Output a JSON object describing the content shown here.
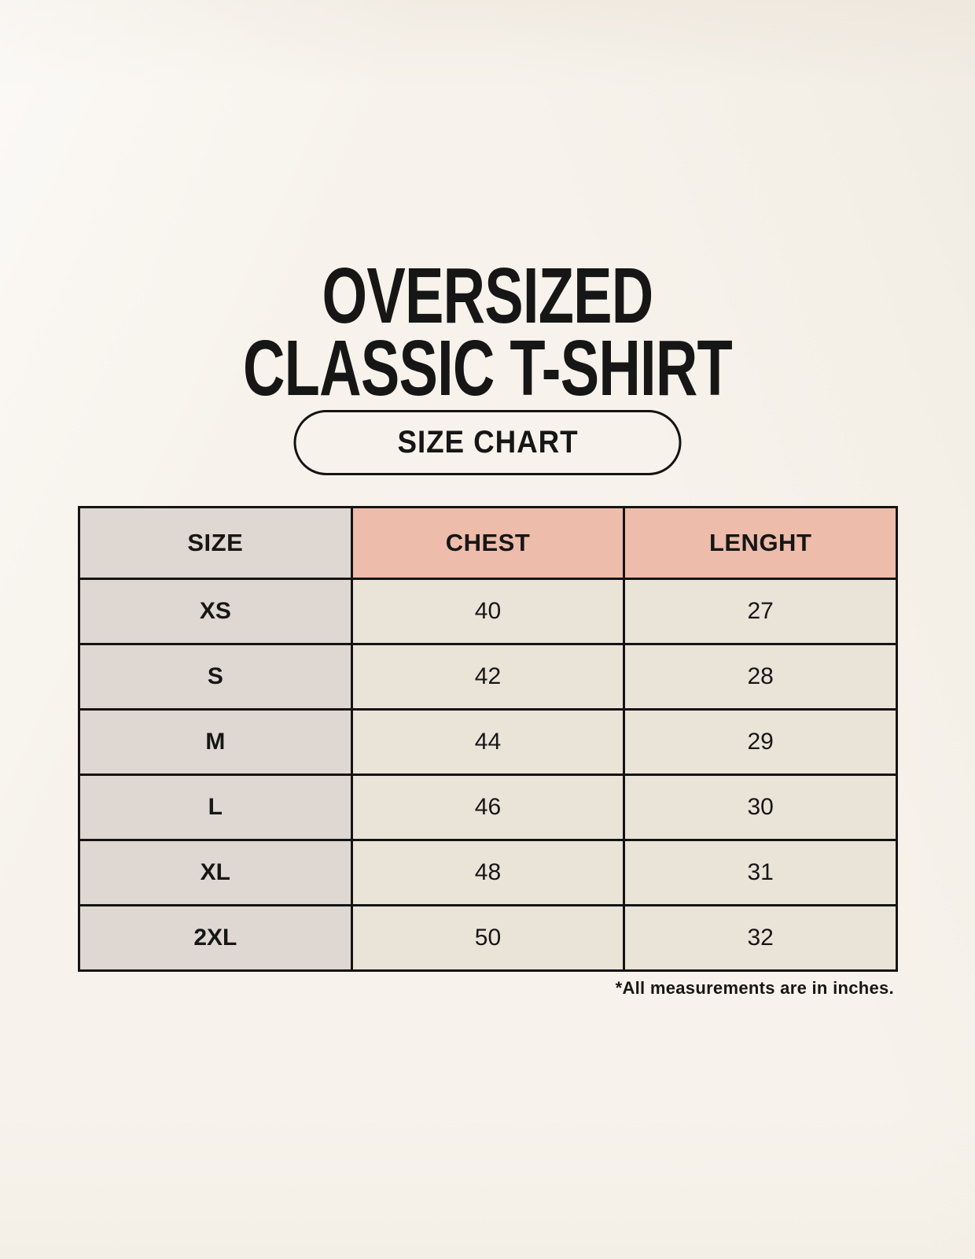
{
  "title": {
    "line1": "OVERSIZED",
    "line2": "CLASSIC T-SHIRT"
  },
  "size_chart_button": {
    "label": "SIZE CHART"
  },
  "table": {
    "columns": [
      "SIZE",
      "CHEST",
      "LENGHT"
    ],
    "rows": [
      {
        "size": "XS",
        "chest": "40",
        "length": "27"
      },
      {
        "size": "S",
        "chest": "42",
        "length": "28"
      },
      {
        "size": "M",
        "chest": "44",
        "length": "29"
      },
      {
        "size": "L",
        "chest": "46",
        "length": "30"
      },
      {
        "size": "XL",
        "chest": "48",
        "length": "31"
      },
      {
        "size": "2XL",
        "chest": "50",
        "length": "32"
      }
    ]
  },
  "footnote": {
    "text": "*All measurements are in inches."
  },
  "theme": {
    "bg": "#f7f3ec",
    "cell_gray": "#ded7d2",
    "cell_pink": "#edbcab",
    "cell_cream": "#eae3d8",
    "border": "#141414",
    "ink": "#161616"
  }
}
